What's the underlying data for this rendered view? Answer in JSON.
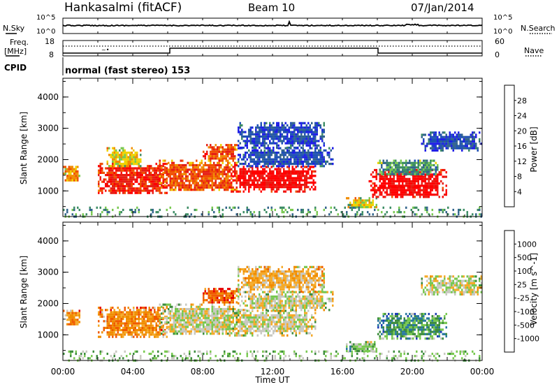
{
  "header": {
    "station": "Hankasalmi (fitACF)",
    "beam": "Beam 10",
    "date": "07/Jan/2014"
  },
  "noise_panel": {
    "left_label": "N.Sky",
    "right_label": "N.Search",
    "left_ticks": [
      "10^5",
      "10^0"
    ],
    "right_ticks": [
      "10^5",
      "10^0"
    ]
  },
  "freq_panel": {
    "left_label_1": "Freq.",
    "left_label_2": "[MHz]",
    "left_ticks": [
      "18",
      "8"
    ],
    "right_label": "Nave",
    "right_ticks": [
      "60",
      "0"
    ]
  },
  "cpid": {
    "label": "CPID",
    "value": "normal (fast stereo) 153"
  },
  "colors": {
    "power_scale": [
      "#1e1ee6",
      "#1e50b4",
      "#32648c",
      "#3c8c64",
      "#78c850",
      "#f0d200",
      "#f08c00",
      "#f05000",
      "#e61e14",
      "#ff0000"
    ],
    "velocity_scale": [
      "#e60000",
      "#f05a00",
      "#f08c00",
      "#f5aa28",
      "#c8c8c0",
      "#78c850",
      "#3c8c3c",
      "#2878a0",
      "#1e3cb4"
    ]
  },
  "chart_data": [
    {
      "type": "heatmap",
      "quantity": "Power",
      "xlabel": "Time UT",
      "ylabel": "Slant Range [km]",
      "colorbar_label": "Power [dB]",
      "colorbar_ticks": [
        "28",
        "24",
        "20",
        "16",
        "12",
        "8",
        "4"
      ],
      "x_ticks": [
        "00:00",
        "04:00",
        "08:00",
        "12:00",
        "16:00",
        "20:00",
        "00:00"
      ],
      "xlim_hours": [
        0,
        24
      ],
      "y_ticks": [
        "4000",
        "3000",
        "2000",
        "1000"
      ],
      "ylim": [
        180,
        4600
      ],
      "regions": [
        {
          "t0": 0.0,
          "t1": 1.0,
          "r0": 1300,
          "r1": 1800,
          "level": 6
        },
        {
          "t0": 2.0,
          "t1": 6.0,
          "r0": 900,
          "r1": 1900,
          "level": 8
        },
        {
          "t0": 2.5,
          "t1": 4.5,
          "r0": 1800,
          "r1": 2400,
          "level": 5
        },
        {
          "t0": 5.5,
          "t1": 10.0,
          "r0": 1000,
          "r1": 2000,
          "level": 7
        },
        {
          "t0": 8.0,
          "t1": 10.0,
          "r0": 2000,
          "r1": 2500,
          "level": 7
        },
        {
          "t0": 9.5,
          "t1": 14.5,
          "r0": 1000,
          "r1": 1800,
          "level": 9
        },
        {
          "t0": 10.0,
          "t1": 15.5,
          "r0": 1800,
          "r1": 2400,
          "level": 1
        },
        {
          "t0": 10.0,
          "t1": 15.0,
          "r0": 2400,
          "r1": 3200,
          "level": 1
        },
        {
          "t0": 16.2,
          "t1": 18.0,
          "r0": 450,
          "r1": 800,
          "level": 5
        },
        {
          "t0": 17.5,
          "t1": 22.0,
          "r0": 800,
          "r1": 1700,
          "level": 9
        },
        {
          "t0": 18.0,
          "t1": 21.5,
          "r0": 1500,
          "r1": 2000,
          "level": 3
        },
        {
          "t0": 20.5,
          "t1": 24.0,
          "r0": 2300,
          "r1": 2900,
          "level": 1
        },
        {
          "t0": 0.0,
          "t1": 24.0,
          "r0": 200,
          "r1": 500,
          "level": 3
        }
      ]
    },
    {
      "type": "heatmap",
      "quantity": "Velocity",
      "xlabel": "Time UT",
      "ylabel": "Slant Range [km]",
      "colorbar_label": "Velocity [m s^-1]",
      "colorbar_ticks": [
        "1000",
        "500",
        "100",
        "25",
        "-25",
        "-100",
        "-500",
        "-1000"
      ],
      "x_ticks": [
        "00:00",
        "04:00",
        "08:00",
        "12:00",
        "16:00",
        "20:00",
        "00:00"
      ],
      "xlim_hours": [
        0,
        24
      ],
      "y_ticks": [
        "4000",
        "3000",
        "2000",
        "1000"
      ],
      "ylim": [
        180,
        4600
      ],
      "regions": [
        {
          "t0": 0.0,
          "t1": 1.0,
          "r0": 1300,
          "r1": 1800,
          "level": 2
        },
        {
          "t0": 2.0,
          "t1": 6.0,
          "r0": 900,
          "r1": 1900,
          "level": 2
        },
        {
          "t0": 5.5,
          "t1": 10.0,
          "r0": 1000,
          "r1": 2000,
          "level": 4
        },
        {
          "t0": 8.0,
          "t1": 10.0,
          "r0": 2000,
          "r1": 2500,
          "level": 1
        },
        {
          "t0": 9.5,
          "t1": 14.5,
          "r0": 1000,
          "r1": 1800,
          "level": 4
        },
        {
          "t0": 10.0,
          "t1": 15.5,
          "r0": 1800,
          "r1": 2400,
          "level": 4
        },
        {
          "t0": 10.0,
          "t1": 15.0,
          "r0": 2400,
          "r1": 3200,
          "level": 3
        },
        {
          "t0": 16.2,
          "t1": 18.0,
          "r0": 450,
          "r1": 800,
          "level": 5
        },
        {
          "t0": 18.0,
          "t1": 22.0,
          "r0": 900,
          "r1": 1700,
          "level": 6
        },
        {
          "t0": 20.5,
          "t1": 24.0,
          "r0": 2300,
          "r1": 2900,
          "level": 4
        },
        {
          "t0": 0.0,
          "t1": 24.0,
          "r0": 200,
          "r1": 500,
          "level": 5
        }
      ]
    }
  ],
  "footer": {
    "xlabel": "Time UT"
  }
}
